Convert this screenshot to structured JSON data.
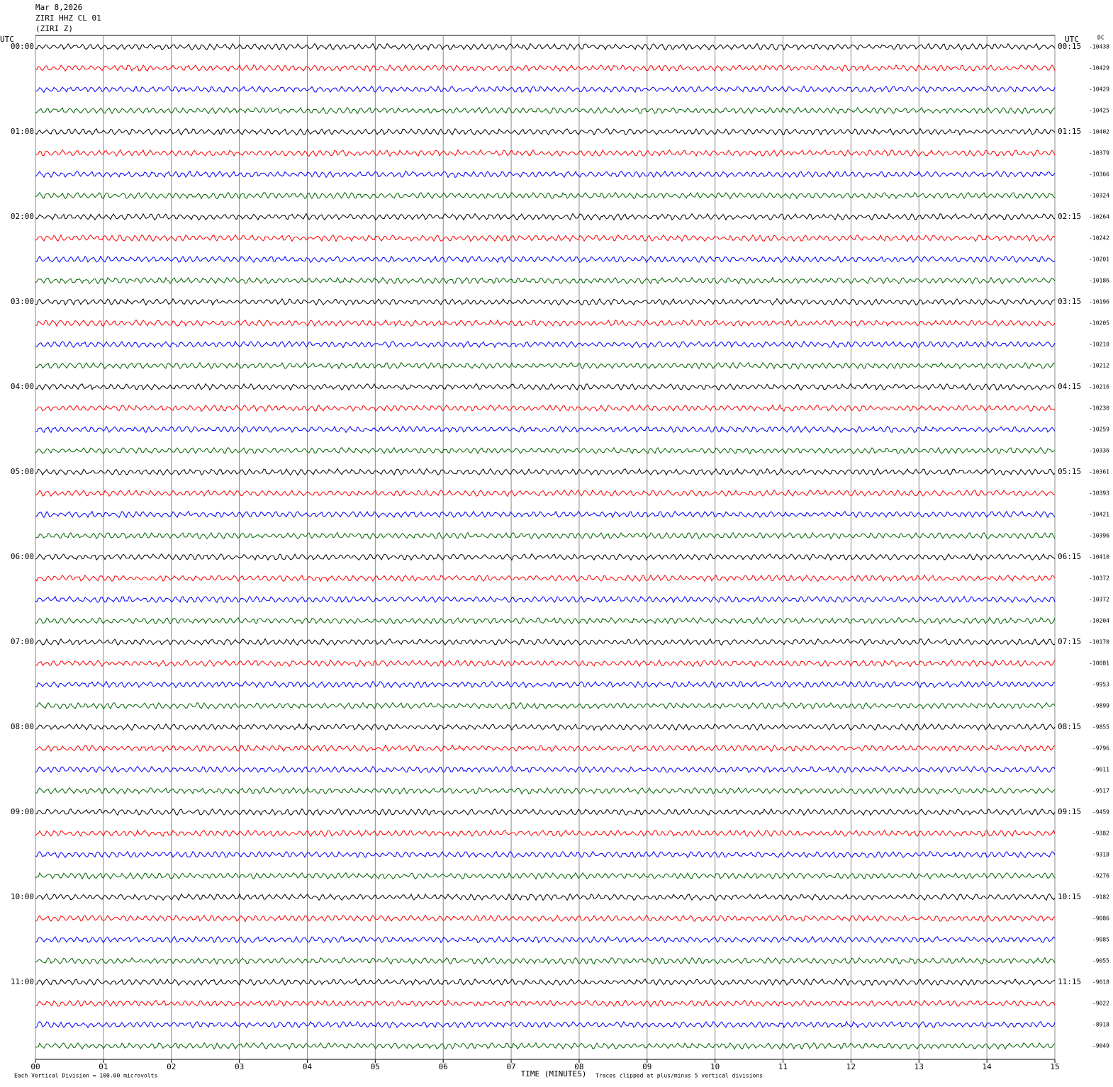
{
  "chart_data": {
    "type": "helicorder",
    "header": [
      "Mar 8,2026",
      "ZIRI HHZ CL 01",
      "(ZIRI Z)"
    ],
    "left_unit": "UTC",
    "right_unit": "UTC",
    "dc_label": "DC",
    "left_labels": [
      "00:00",
      "01:00",
      "02:00",
      "03:00",
      "04:00",
      "05:00",
      "06:00",
      "07:00",
      "08:00",
      "09:00",
      "10:00",
      "11:00"
    ],
    "right_labels": [
      "00:15",
      "01:15",
      "02:15",
      "03:15",
      "04:15",
      "05:15",
      "06:15",
      "07:15",
      "08:15",
      "09:15",
      "10:15",
      "11:15"
    ],
    "dc_values": [
      -10438,
      -10429,
      -10429,
      -10425,
      -10402,
      -10379,
      -10366,
      -10324,
      -10264,
      -10242,
      -10201,
      -10186,
      -10196,
      -10205,
      -10210,
      -10212,
      -10216,
      -10230,
      -10259,
      -10336,
      -10361,
      -10393,
      -10421,
      -10396,
      -10410,
      -10372,
      -10372,
      -10204,
      -10170,
      -10081,
      -9953,
      -9899,
      -9855,
      -9796,
      -9611,
      -9517,
      -9459,
      -9382,
      -9318,
      -9276,
      -9182,
      -9086,
      -9085,
      -9055,
      -9018,
      -9022,
      -8918,
      -9049
    ],
    "trace_colors": [
      "#000000",
      "#ff0000",
      "#0000ff",
      "#006400"
    ],
    "xlim": [
      0,
      15
    ],
    "xticks": [
      {
        "value": 0,
        "label": "00"
      },
      {
        "value": 1,
        "label": "01"
      },
      {
        "value": 2,
        "label": "02"
      },
      {
        "value": 3,
        "label": "03"
      },
      {
        "value": 4,
        "label": "04"
      },
      {
        "value": 5,
        "label": "05"
      },
      {
        "value": 6,
        "label": "06"
      },
      {
        "value": 7,
        "label": "07"
      },
      {
        "value": 8,
        "label": "08"
      },
      {
        "value": 9,
        "label": "09"
      },
      {
        "value": 10,
        "label": "10"
      },
      {
        "value": 11,
        "label": "11"
      },
      {
        "value": 12,
        "label": "12"
      },
      {
        "value": 13,
        "label": "13"
      },
      {
        "value": 14,
        "label": "14"
      },
      {
        "value": 15,
        "label": "15"
      }
    ],
    "xlabel": "TIME (MINUTES)",
    "scale_note": "Each Vertical Division = 100.00 microvolts",
    "clip_note": "Traces clipped at plus/minus 5 vertical divisions",
    "grid": true
  }
}
